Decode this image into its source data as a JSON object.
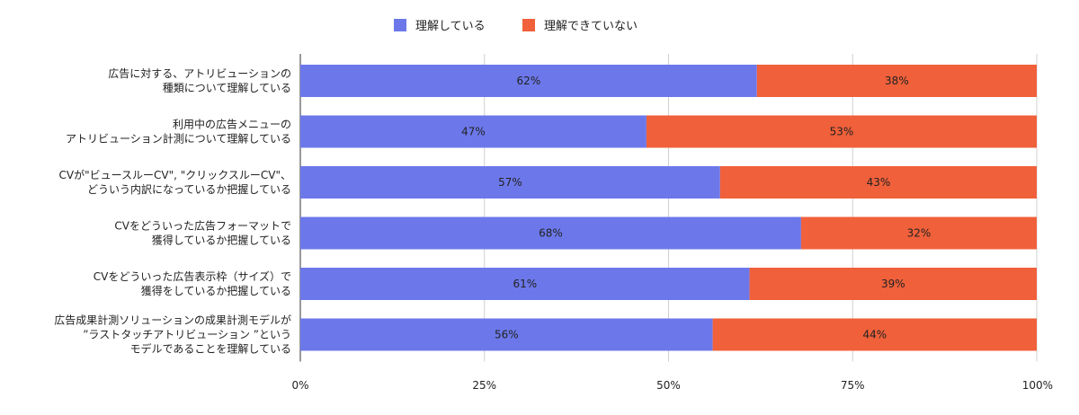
{
  "chart_data": {
    "type": "bar",
    "orientation": "horizontal",
    "stacked": "percent",
    "title": "",
    "xlabel": "",
    "ylabel": "",
    "legend_position": "top",
    "grid": true,
    "xlim": [
      0,
      100
    ],
    "x_ticks": [
      "0%",
      "25%",
      "50%",
      "75%",
      "100%"
    ],
    "categories": [
      [
        "広告に対する、アトリビューションの",
        "種類について理解している"
      ],
      [
        "利用中の広告メニューの",
        "アトリビューション計測について理解している"
      ],
      [
        "CVが\"ビュースルーCV\", \"クリックスルーCV\"、",
        "どういう内訳になっているか把握している"
      ],
      [
        "CVをどういった広告フォーマットで",
        "獲得しているか把握している"
      ],
      [
        "CVをどういった広告表示枠（サイズ）で",
        "獲得をしているか把握している"
      ],
      [
        "広告成果計測ソリューションの成果計測モデルが",
        "”ラストタッチアトリビューション ”という",
        "モデルであることを理解している"
      ]
    ],
    "series": [
      {
        "name": "理解している",
        "color": "#6c78ea",
        "values": [
          62,
          47,
          57,
          68,
          61,
          56
        ],
        "labels": [
          "62%",
          "47%",
          "57%",
          "68%",
          "61%",
          "56%"
        ]
      },
      {
        "name": "理解できていない",
        "color": "#f0603a",
        "values": [
          38,
          53,
          43,
          32,
          39,
          44
        ],
        "labels": [
          "38%",
          "53%",
          "43%",
          "32%",
          "39%",
          "44%"
        ]
      }
    ]
  }
}
